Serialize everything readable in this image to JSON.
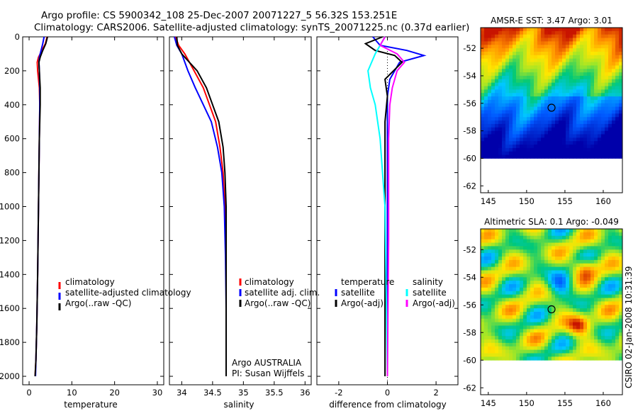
{
  "title_line1": "Argo profile: CS 5900342_108 25-Dec-2007 20071227_5 56.32S 153.251E",
  "title_line2": "Climatology: CARS2006. Satellite-adjusted climatology: synTS_20071225.nc (0.37d earlier)",
  "footer_stamp": "CSIRO 02-Jan-2008 10:31:39",
  "colors": {
    "climatology": "#ff0000",
    "satellite": "#0000ff",
    "argo": "#000000",
    "sat_salinity": "#00ffff",
    "argo_adj_salinity": "#ff00ff"
  },
  "chart_data": [
    {
      "type": "line",
      "panel": "temperature",
      "xlabel": "temperature",
      "ylabel": "",
      "xlim": [
        -1.5,
        31.5
      ],
      "ylim": [
        2050,
        0
      ],
      "xticks": [
        "0",
        "10",
        "20",
        "30"
      ],
      "yticks": [
        "0",
        "200",
        "400",
        "600",
        "800",
        "1000",
        "1200",
        "1400",
        "1600",
        "1800",
        "2000"
      ],
      "legend": [
        "climatology",
        "satellite-adjusted climatology",
        "Argo(..raw -QC)"
      ],
      "series": [
        {
          "name": "climatology",
          "x": [
            4.2,
            3.8,
            3.0,
            2.2,
            1.9,
            2.0,
            2.4,
            2.5,
            2.4,
            2.2,
            2.0,
            1.8,
            1.6,
            1.4
          ],
          "y": [
            0,
            40,
            80,
            120,
            150,
            200,
            300,
            400,
            600,
            1000,
            1400,
            1700,
            1900,
            2000
          ]
        },
        {
          "name": "satellite-adjusted climatology",
          "x": [
            3.5,
            3.2,
            2.8,
            2.4,
            2.3,
            2.4,
            2.5,
            2.5,
            2.4,
            2.2,
            2.0,
            1.8,
            1.6,
            1.5
          ],
          "y": [
            0,
            40,
            80,
            120,
            150,
            200,
            300,
            400,
            600,
            1000,
            1400,
            1700,
            1900,
            2000
          ]
        },
        {
          "name": "Argo(..raw -QC)",
          "x": [
            4.3,
            3.9,
            3.2,
            2.6,
            2.3,
            2.4,
            2.6,
            2.6,
            2.4,
            2.2,
            2.0,
            1.8,
            1.6,
            1.4
          ],
          "y": [
            0,
            40,
            80,
            120,
            150,
            200,
            300,
            400,
            600,
            1000,
            1400,
            1700,
            1900,
            2000
          ]
        }
      ]
    },
    {
      "type": "line",
      "panel": "salinity",
      "xlabel": "salinity",
      "xlim": [
        33.8,
        36.1
      ],
      "ylim": [
        2050,
        0
      ],
      "xticks": [
        "34",
        "34.5",
        "35",
        "35.5",
        "36"
      ],
      "legend": [
        "climatology",
        "satellite adj. clim.",
        "Argo(..raw -QC)"
      ],
      "annotation": [
        "Argo AUSTRALIA",
        "PI: Susan Wijffels"
      ],
      "series": [
        {
          "name": "climatology",
          "x": [
            33.9,
            33.95,
            34.05,
            34.2,
            34.35,
            34.45,
            34.55,
            34.62,
            34.67,
            34.7,
            34.72,
            34.72,
            34.72
          ],
          "y": [
            0,
            50,
            100,
            200,
            300,
            400,
            500,
            650,
            800,
            1000,
            1300,
            1600,
            2000
          ]
        },
        {
          "name": "satellite adj. clim.",
          "x": [
            33.88,
            33.92,
            34.0,
            34.1,
            34.22,
            34.35,
            34.48,
            34.58,
            34.65,
            34.69,
            34.71,
            34.72,
            34.72
          ],
          "y": [
            0,
            50,
            100,
            200,
            300,
            400,
            500,
            650,
            800,
            1000,
            1300,
            1600,
            2000
          ]
        },
        {
          "name": "Argo(..raw -QC)",
          "x": [
            33.92,
            33.93,
            34.0,
            34.25,
            34.4,
            34.5,
            34.6,
            34.67,
            34.7,
            34.72,
            34.72,
            34.72,
            34.72
          ],
          "y": [
            0,
            50,
            100,
            200,
            300,
            400,
            500,
            650,
            800,
            1000,
            1300,
            1600,
            2000
          ]
        }
      ]
    },
    {
      "type": "line",
      "panel": "difference",
      "xlabel": "difference from climatology",
      "xlim": [
        -2.9,
        2.9
      ],
      "ylim": [
        2050,
        0
      ],
      "xticks": [
        "-2",
        "0",
        "2"
      ],
      "legend": [
        "temperature",
        "satellite",
        "Argo(-adj)",
        "salinity",
        "satellite",
        "Argo(-adj)"
      ],
      "series": [
        {
          "name": "temperature satellite",
          "x": [
            -0.6,
            -0.3,
            0.8,
            1.5,
            0.5,
            0.1,
            0.0,
            0.0,
            0.0,
            0.0,
            0.0
          ],
          "y": [
            0,
            50,
            80,
            110,
            150,
            250,
            350,
            500,
            1000,
            1500,
            2000
          ]
        },
        {
          "name": "temperature Argo(-adj)",
          "x": [
            -0.2,
            -0.9,
            -0.5,
            0.3,
            0.6,
            -0.1,
            0.0,
            -0.1,
            -0.1,
            -0.1,
            -0.1
          ],
          "y": [
            0,
            40,
            80,
            110,
            150,
            250,
            350,
            500,
            1000,
            1500,
            2000
          ]
        },
        {
          "name": "salinity satellite",
          "x": [
            -0.1,
            -0.5,
            -0.8,
            -0.7,
            -0.5,
            -0.3,
            -0.2,
            -0.1,
            -0.05,
            0.0
          ],
          "y": [
            0,
            100,
            200,
            300,
            400,
            600,
            800,
            1000,
            1500,
            2000
          ]
        },
        {
          "name": "salinity Argo(-adj)",
          "x": [
            -0.1,
            -0.3,
            0.4,
            0.7,
            0.4,
            0.2,
            0.1,
            0.05,
            0.05,
            0.0
          ],
          "y": [
            0,
            50,
            100,
            150,
            200,
            300,
            400,
            600,
            1200,
            2000
          ]
        }
      ]
    },
    {
      "type": "heatmap",
      "panel": "sst_map",
      "title": "AMSR-E SST: 3.47 Argo: 3.01",
      "xticks": [
        "145",
        "150",
        "155",
        "160"
      ],
      "yticks": [
        "-52",
        "-54",
        "-56",
        "-58",
        "-60",
        "-62"
      ],
      "xlim": [
        144,
        162.5
      ],
      "ylim": [
        -62.5,
        -50.5
      ],
      "marker": {
        "lon": 153.251,
        "lat": -56.32
      }
    },
    {
      "type": "heatmap",
      "panel": "sla_map",
      "title": "Altimetric SLA: 0.1 Argo: -0.049",
      "xticks": [
        "145",
        "150",
        "155",
        "160"
      ],
      "yticks": [
        "-52",
        "-54",
        "-56",
        "-58",
        "-60",
        "-62"
      ],
      "xlim": [
        144,
        162.5
      ],
      "ylim": [
        -62.5,
        -50.5
      ],
      "marker": {
        "lon": 153.251,
        "lat": -56.32
      }
    }
  ]
}
